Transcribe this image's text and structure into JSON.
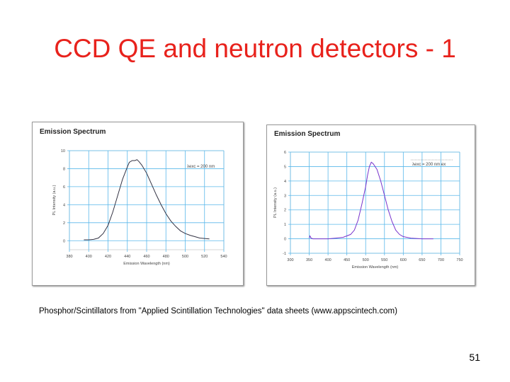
{
  "slide": {
    "title": "CCD QE and neutron detectors - 1",
    "caption": "Phosphor/Scintillators from \"Applied Scintillation Technologies\" data sheets (www.appscintech.com)",
    "page_number": "51"
  },
  "colors": {
    "title": "#e8221c",
    "curve1": "#333344",
    "curve2": "#7733cc",
    "grid": "#5ab8ea"
  },
  "chart_data": [
    {
      "type": "line",
      "title": "Emission Spectrum",
      "xlabel": "Emission Wavelength (nm)",
      "ylabel": "PL Intensity (a.u.)",
      "annotation": "λexc = 200 nm",
      "x_ticks": [
        "380",
        "400",
        "420",
        "440",
        "460",
        "480",
        "500",
        "520",
        "540"
      ],
      "y_ticks": [
        "0",
        "2",
        "4",
        "6",
        "8",
        "10"
      ],
      "xlim": [
        380,
        540
      ],
      "ylim": [
        -1,
        10
      ],
      "grid": true,
      "series": [
        {
          "x": [
            395,
            400,
            405,
            410,
            415,
            420,
            425,
            430,
            435,
            440,
            442,
            445,
            448,
            450,
            452,
            455,
            460,
            465,
            470,
            475,
            480,
            485,
            490,
            495,
            500,
            505,
            510,
            515,
            520,
            525
          ],
          "y": [
            0.1,
            0.1,
            0.15,
            0.3,
            0.8,
            1.7,
            3.2,
            5.0,
            6.8,
            8.2,
            8.7,
            8.9,
            8.9,
            9.0,
            8.8,
            8.4,
            7.5,
            6.3,
            5.1,
            4.0,
            3.0,
            2.2,
            1.6,
            1.1,
            0.8,
            0.6,
            0.45,
            0.3,
            0.25,
            0.2
          ]
        }
      ]
    },
    {
      "type": "line",
      "title": "Emission Spectrum",
      "xlabel": "Emission Wavelength (nm)",
      "ylabel": "PL Intensity (a.u.)",
      "annotation": "λexc = 200 nm ex",
      "x_ticks": [
        "300",
        "350",
        "400",
        "450",
        "500",
        "550",
        "600",
        "650",
        "700",
        "750"
      ],
      "y_ticks": [
        "-1",
        "0",
        "1",
        "2",
        "3",
        "4",
        "5",
        "6"
      ],
      "xlim": [
        300,
        750
      ],
      "ylim": [
        -1,
        6
      ],
      "grid": true,
      "series": [
        {
          "x": [
            350,
            352,
            355,
            360,
            380,
            400,
            420,
            440,
            460,
            470,
            480,
            490,
            500,
            505,
            510,
            515,
            520,
            530,
            540,
            550,
            560,
            570,
            580,
            590,
            600,
            620,
            650,
            680
          ],
          "y": [
            0.05,
            0.2,
            0.05,
            0.0,
            0.0,
            0.0,
            0.05,
            0.1,
            0.3,
            0.6,
            1.3,
            2.4,
            3.6,
            4.4,
            5.0,
            5.3,
            5.2,
            4.8,
            4.0,
            3.0,
            2.0,
            1.2,
            0.6,
            0.3,
            0.15,
            0.05,
            0.0,
            0.0
          ]
        }
      ]
    }
  ]
}
